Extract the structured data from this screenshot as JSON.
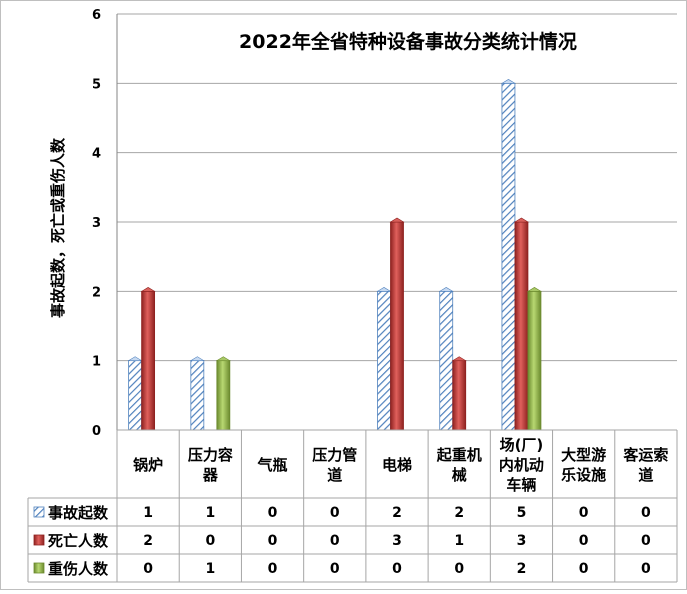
{
  "chart_data": {
    "type": "bar",
    "title": "2022年全省特种设备事故分类统计情况",
    "ylabel": "事故起数，死亡或重伤人数",
    "xlabel": "",
    "ylim": [
      0,
      6
    ],
    "yticks": [
      0,
      1,
      2,
      3,
      4,
      5,
      6
    ],
    "grid": true,
    "legend": "table-left",
    "categories": [
      "锅炉",
      "压力容器",
      "气瓶",
      "压力管道",
      "电梯",
      "起重机械",
      "场(厂)内机动车辆",
      "大型游乐设施",
      "客运索道"
    ],
    "category_display": [
      [
        "锅炉"
      ],
      [
        "压力容",
        "器"
      ],
      [
        "气瓶"
      ],
      [
        "压力管",
        "道"
      ],
      [
        "电梯"
      ],
      [
        "起重机",
        "械"
      ],
      [
        "场(厂)",
        "内机动",
        "车辆"
      ],
      [
        "大型游",
        "乐设施"
      ],
      [
        "客运索",
        "道"
      ]
    ],
    "series": [
      {
        "name": "事故起数",
        "values": [
          1,
          1,
          0,
          0,
          2,
          2,
          5,
          0,
          0
        ],
        "color": "#4f81bd",
        "pattern": "hatch"
      },
      {
        "name": "死亡人数",
        "values": [
          2,
          0,
          0,
          0,
          3,
          1,
          3,
          0,
          0
        ],
        "color": "#c0504d",
        "pattern": "solid"
      },
      {
        "name": "重伤人数",
        "values": [
          0,
          1,
          0,
          0,
          0,
          0,
          2,
          0,
          0
        ],
        "color": "#9bbb59",
        "pattern": "solid"
      }
    ]
  }
}
